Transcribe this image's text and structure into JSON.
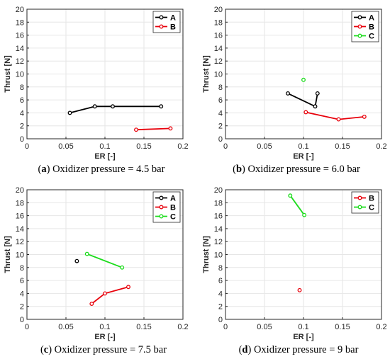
{
  "chart_data": [
    {
      "type": "line",
      "letter": "a",
      "caption": "Oxidizer pressure = 4.5 bar",
      "xlabel": "ER [-]",
      "ylabel": "Thrust [N]",
      "xlim": [
        0,
        0.2
      ],
      "ylim": [
        0,
        20
      ],
      "xticks": [
        "0",
        "0.05",
        "0.1",
        "0.15",
        "0.2"
      ],
      "yticks": [
        "0",
        "2",
        "4",
        "6",
        "8",
        "10",
        "12",
        "14",
        "16",
        "18",
        "20"
      ],
      "grid": true,
      "legend_position": "top-right",
      "series": [
        {
          "name": "A",
          "color": "#000000",
          "points": [
            [
              0.055,
              4.0
            ],
            [
              0.087,
              5.0
            ],
            [
              0.11,
              5.0
            ],
            [
              0.172,
              5.0
            ]
          ]
        },
        {
          "name": "B",
          "color": "#e8000b",
          "points": [
            [
              0.14,
              1.4
            ],
            [
              0.184,
              1.6
            ]
          ]
        }
      ]
    },
    {
      "type": "line",
      "letter": "b",
      "caption": "Oxidizer pressure = 6.0 bar",
      "xlabel": "ER [-]",
      "ylabel": "Thrust [N]",
      "xlim": [
        0,
        0.2
      ],
      "ylim": [
        0,
        20
      ],
      "xticks": [
        "0",
        "0.05",
        "0.1",
        "0.15",
        "0.2"
      ],
      "yticks": [
        "0",
        "2",
        "4",
        "6",
        "8",
        "10",
        "12",
        "14",
        "16",
        "18",
        "20"
      ],
      "grid": true,
      "legend_position": "top-right",
      "series": [
        {
          "name": "A",
          "color": "#000000",
          "points": [
            [
              0.08,
              7.0
            ],
            [
              0.115,
              5.0
            ],
            [
              0.118,
              7.0
            ]
          ]
        },
        {
          "name": "B",
          "color": "#e8000b",
          "points": [
            [
              0.103,
              4.1
            ],
            [
              0.145,
              3.0
            ],
            [
              0.178,
              3.4
            ]
          ]
        },
        {
          "name": "C",
          "color": "#1bdc1b",
          "points": [
            [
              0.1,
              9.1
            ]
          ]
        }
      ]
    },
    {
      "type": "line",
      "letter": "c",
      "caption": "Oxidizer pressure = 7.5 bar",
      "xlabel": "ER [-]",
      "ylabel": "Thrust [N]",
      "xlim": [
        0,
        0.2
      ],
      "ylim": [
        0,
        20
      ],
      "xticks": [
        "0",
        "0.05",
        "0.1",
        "0.15",
        "0.2"
      ],
      "yticks": [
        "0",
        "2",
        "4",
        "6",
        "8",
        "10",
        "12",
        "14",
        "16",
        "18",
        "20"
      ],
      "grid": true,
      "legend_position": "top-right",
      "series": [
        {
          "name": "A",
          "color": "#000000",
          "points": [
            [
              0.064,
              9.0
            ]
          ]
        },
        {
          "name": "B",
          "color": "#e8000b",
          "points": [
            [
              0.083,
              2.4
            ],
            [
              0.1,
              4.0
            ],
            [
              0.13,
              5.0
            ]
          ]
        },
        {
          "name": "C",
          "color": "#1bdc1b",
          "points": [
            [
              0.077,
              10.1
            ],
            [
              0.122,
              8.0
            ]
          ]
        }
      ]
    },
    {
      "type": "line",
      "letter": "d",
      "caption": "Oxidizer pressure = 9 bar",
      "xlabel": "ER [-]",
      "ylabel": "Thrust [N]",
      "xlim": [
        0,
        0.2
      ],
      "ylim": [
        0,
        20
      ],
      "xticks": [
        "0",
        "0.05",
        "0.1",
        "0.15",
        "0.2"
      ],
      "yticks": [
        "0",
        "2",
        "4",
        "6",
        "8",
        "10",
        "12",
        "14",
        "16",
        "18",
        "20"
      ],
      "grid": true,
      "legend_position": "top-right",
      "series": [
        {
          "name": "B",
          "color": "#e8000b",
          "points": [
            [
              0.095,
              4.5
            ]
          ]
        },
        {
          "name": "C",
          "color": "#1bdc1b",
          "points": [
            [
              0.083,
              19.1
            ],
            [
              0.101,
              16.1
            ]
          ]
        }
      ]
    }
  ]
}
